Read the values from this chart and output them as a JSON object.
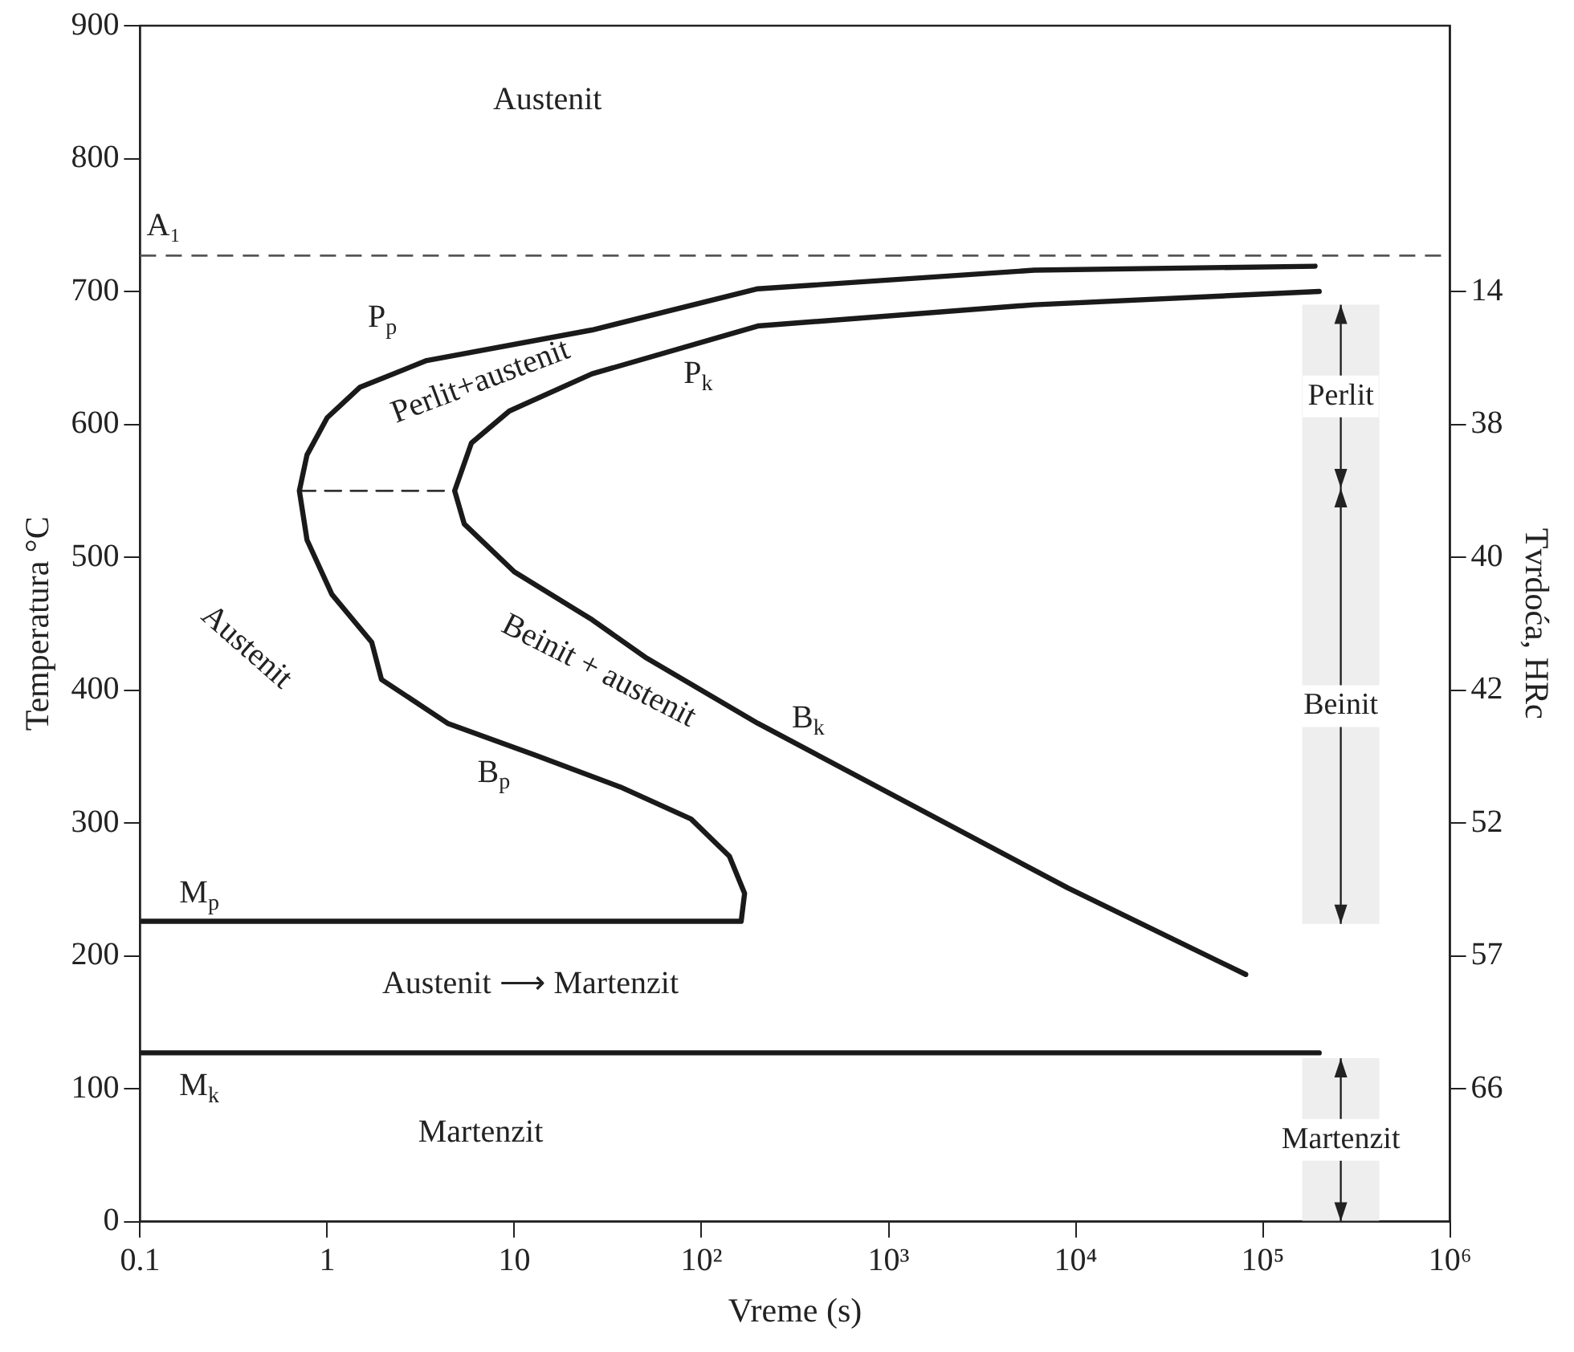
{
  "chart_data": {
    "type": "line",
    "xlabel": "Vreme (s)",
    "ylabel": "Temperatura °C",
    "y2label": "Tvrdoća, HRc",
    "log": "x",
    "grid": false,
    "legend": false,
    "marker": "none",
    "xlim": [
      0.1,
      1000000
    ],
    "xticks": [
      0.1,
      1,
      10,
      {
        "value": 100,
        "label": "10²"
      },
      {
        "value": 1000,
        "label": "10³"
      },
      {
        "value": 10000,
        "label": "10⁴"
      },
      {
        "value": 100000,
        "label": "10⁵"
      },
      {
        "value": 1000000,
        "label": "10⁶"
      }
    ],
    "ylim": [
      0,
      900
    ],
    "yticks": [
      0,
      100,
      200,
      300,
      400,
      500,
      600,
      700,
      800,
      900
    ],
    "y2_categories": [
      "14",
      "38",
      "40",
      "42",
      "52",
      "57",
      "66"
    ],
    "series": [
      {
        "color": "#1a1a1a",
        "x": [
          0.1,
          163,
          170,
          141,
          88,
          37,
          13,
          4.4,
          1.95,
          1.73,
          1.06,
          0.78,
          0.71,
          0.78,
          1.0,
          1.5,
          3.4,
          26,
          200,
          6000,
          190000
        ],
        "values": [
          226,
          226,
          247,
          275,
          303,
          327,
          351,
          375,
          408,
          436,
          472,
          513,
          550,
          577,
          605,
          628,
          648,
          671,
          702,
          716,
          719
        ]
      },
      {
        "color": "#1a1a1a",
        "x": [
          81000,
          9100,
          200,
          51,
          26,
          10,
          5.4,
          4.8,
          5.9,
          9.4,
          26,
          200,
          6000,
          200000
        ],
        "values": [
          186,
          251,
          375,
          424,
          453,
          489,
          525,
          550,
          586,
          610,
          638,
          674,
          690,
          700
        ]
      },
      {
        "color": "#1a1a1a",
        "x": [
          0.1,
          200000
        ],
        "values": [
          127,
          127
        ]
      },
      {
        "color": "#333333",
        "line_style": "dashed",
        "x": [
          0.71,
          4.8
        ],
        "values": [
          550,
          550
        ]
      }
    ],
    "ref_lines": [
      {
        "axis": "y",
        "value": 727,
        "label": "A₁",
        "color": "#555555",
        "line_style": "dashed"
      }
    ],
    "bands": [
      {
        "axis": "y",
        "from": 552,
        "to": 690,
        "label": "Perlit",
        "color": "#eeeeee"
      },
      {
        "axis": "y",
        "from": 224,
        "to": 552,
        "label": "Beinit",
        "color": "#eeeeee"
      },
      {
        "axis": "y",
        "from": 0,
        "to": 123,
        "label": "Martenzit",
        "color": "#eeeeee"
      }
    ],
    "annotations": [
      "Austenit",
      "Perlit+austenit",
      "Austenit",
      "Beinit + austenit",
      "Austenit ⟶ Martenzit",
      "Martenzit",
      "P$_{p}$",
      "P$_{k}$",
      "B$_{p}$",
      "B$_{k}$",
      "M$_{p}$",
      "M$_{k}$"
    ]
  }
}
